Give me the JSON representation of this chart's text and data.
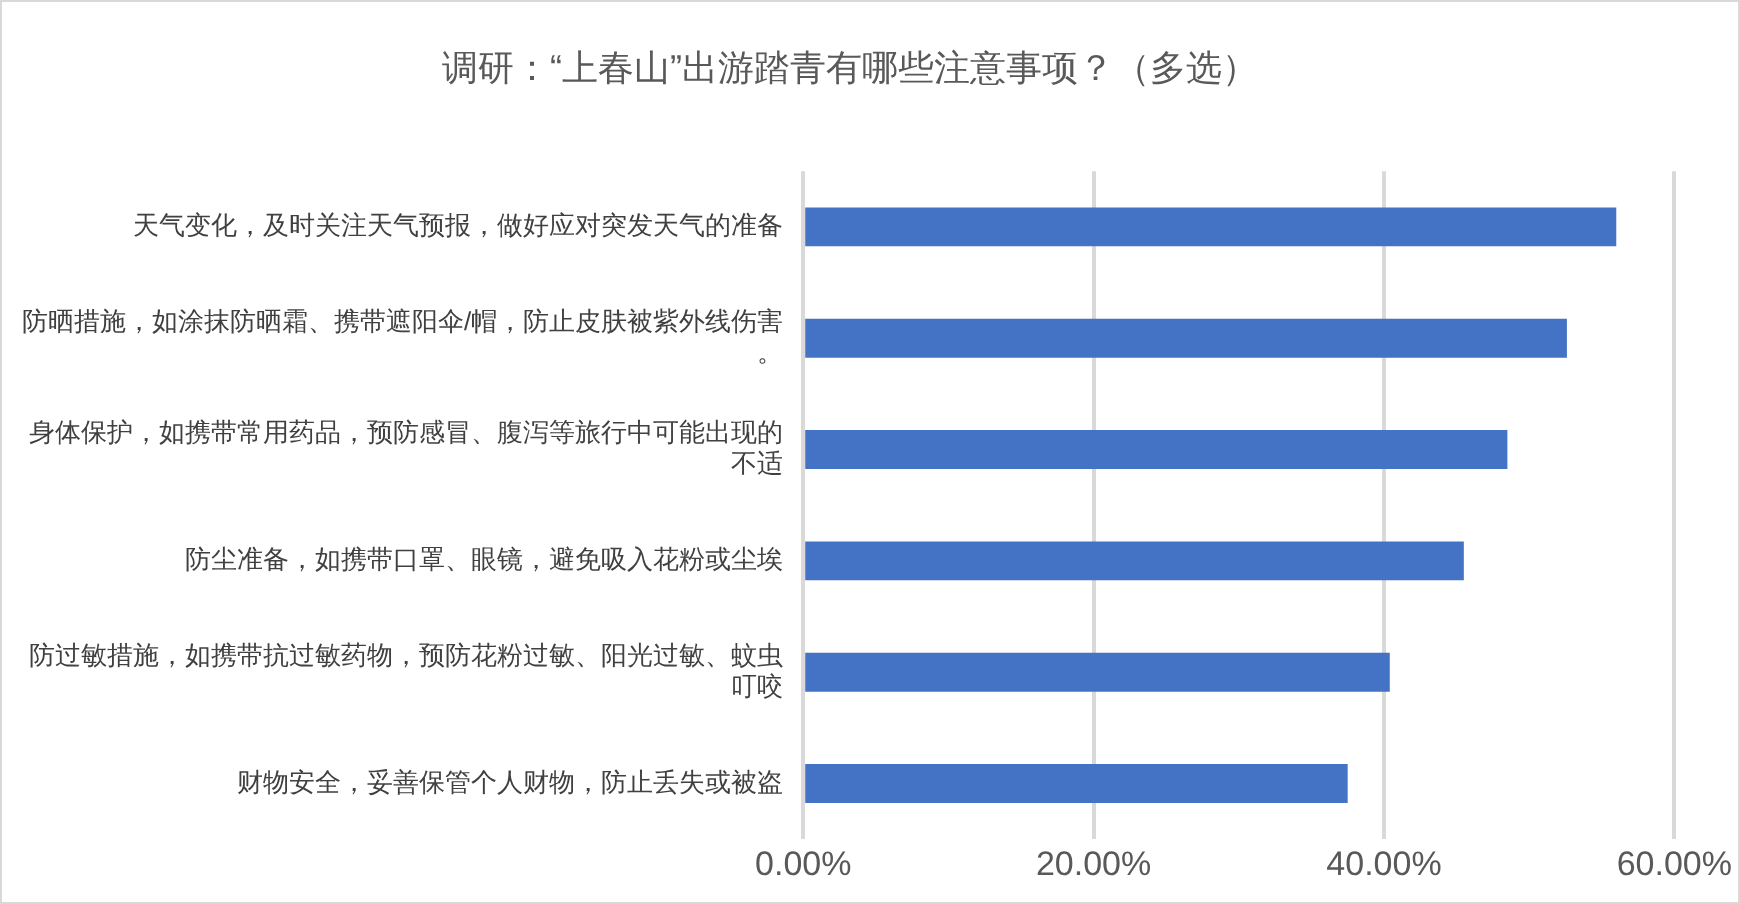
{
  "chart_data": {
    "type": "bar",
    "orientation": "horizontal",
    "title": "调研：“上春山”出游踏青有哪些注意事项？（多选）",
    "categories": [
      "天气变化，及时关注天气预报，做好应对突发天气的准备",
      "防晒措施，如涂抹防晒霜、携带遮阳伞/帽，防止皮肤被紫外线伤害。",
      "身体保护，如携带常用药品，预防感冒、腹泻等旅行中可能出现的不适",
      "防尘准备，如携带口罩、眼镜，避免吸入花粉或尘埃",
      "防过敏措施，如携带抗过敏药物，预防花粉过敏、阳光过敏、蚊虫叮咬",
      "财物安全，妥善保管个人财物，防止丢失或被盗"
    ],
    "values": [
      56.0,
      52.6,
      48.5,
      45.5,
      40.4,
      37.5
    ],
    "color": "#4472c4",
    "xlim": [
      0,
      60
    ],
    "xticks": [
      {
        "value": 0,
        "label": "0.00%"
      },
      {
        "value": 20,
        "label": "20.00%"
      },
      {
        "value": 40,
        "label": "40.00%"
      },
      {
        "value": 60,
        "label": "60.00%"
      }
    ],
    "grid": "x",
    "legend": false
  }
}
